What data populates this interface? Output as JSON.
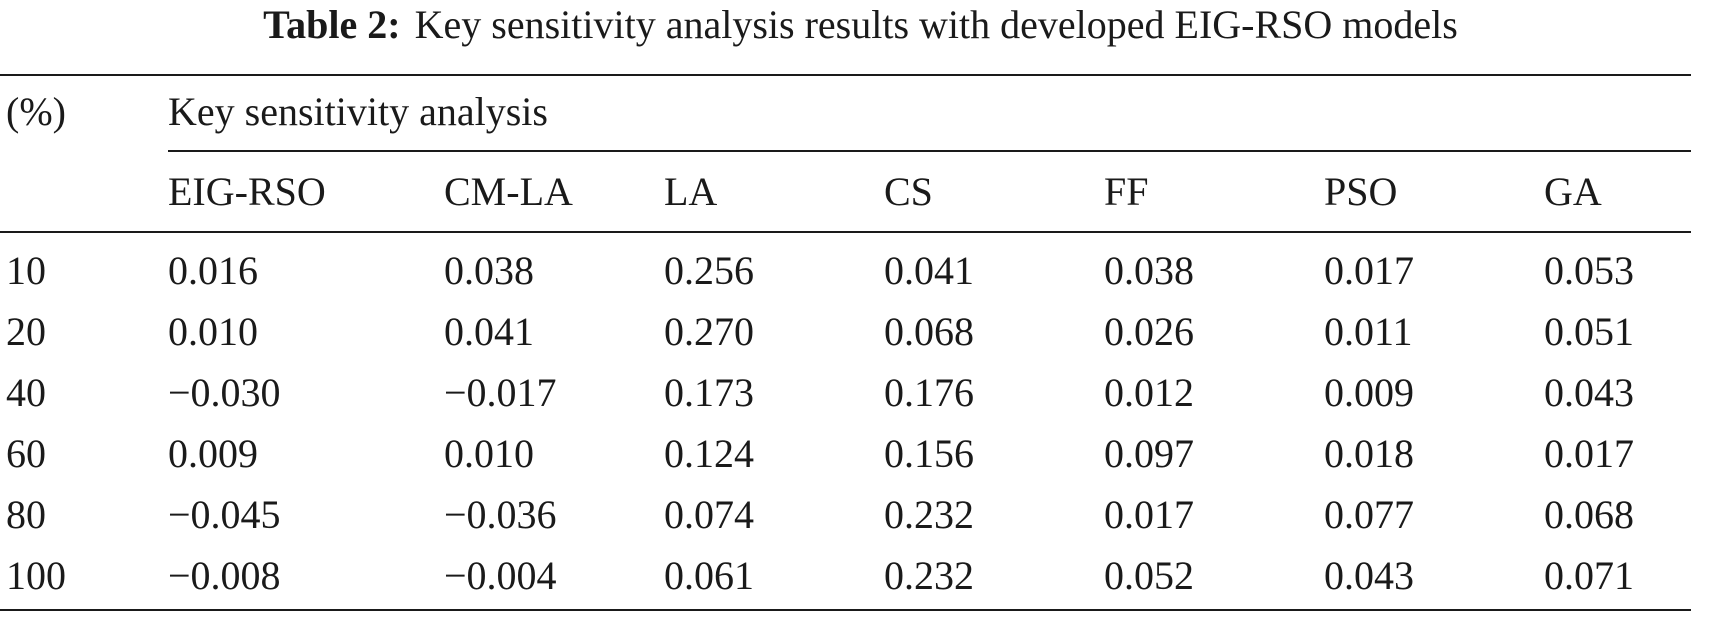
{
  "caption": {
    "label": "Table 2:",
    "text": "Key sensitivity analysis results with developed EIG-RSO models"
  },
  "table": {
    "row_header": "(%)",
    "group_header": "Key sensitivity analysis",
    "columns": [
      "EIG-RSO",
      "CM-LA",
      "LA",
      "CS",
      "FF",
      "PSO",
      "GA"
    ],
    "rows": [
      {
        "key": "10",
        "values": [
          "0.016",
          "0.038",
          "0.256",
          "0.041",
          "0.038",
          "0.017",
          "0.053"
        ]
      },
      {
        "key": "20",
        "values": [
          "0.010",
          "0.041",
          "0.270",
          "0.068",
          "0.026",
          "0.011",
          "0.051"
        ]
      },
      {
        "key": "40",
        "values": [
          "−0.030",
          "−0.017",
          "0.173",
          "0.176",
          "0.012",
          "0.009",
          "0.043"
        ]
      },
      {
        "key": "60",
        "values": [
          "0.009",
          "0.010",
          "0.124",
          "0.156",
          "0.097",
          "0.018",
          "0.017"
        ]
      },
      {
        "key": "80",
        "values": [
          "−0.045",
          "−0.036",
          "0.074",
          "0.232",
          "0.017",
          "0.077",
          "0.068"
        ]
      },
      {
        "key": "100",
        "values": [
          "−0.008",
          "−0.004",
          "0.061",
          "0.232",
          "0.052",
          "0.043",
          "0.071"
        ]
      }
    ]
  }
}
